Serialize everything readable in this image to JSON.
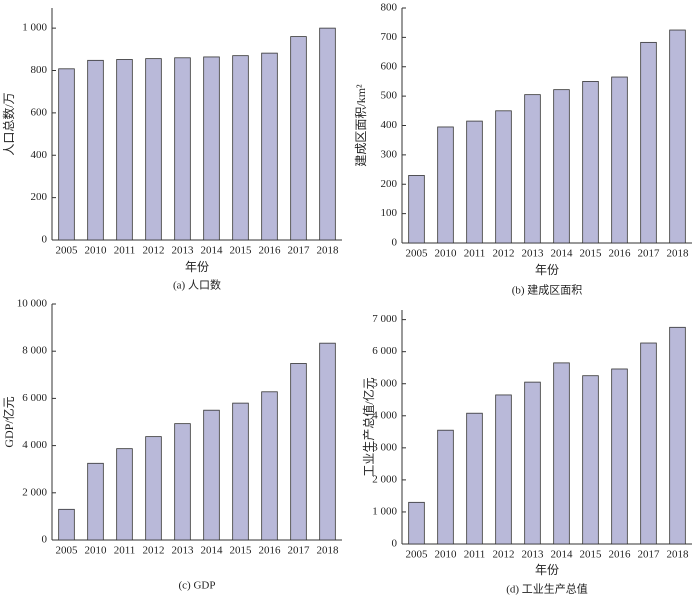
{
  "chart_data": [
    {
      "type": "bar",
      "caption": "(a) 人口数",
      "xlabel": "年份",
      "ylabel": "人口总数/万",
      "categories": [
        "2005",
        "2010",
        "2011",
        "2012",
        "2013",
        "2014",
        "2015",
        "2016",
        "2017",
        "2018"
      ],
      "values": [
        808,
        848,
        852,
        856,
        860,
        864,
        870,
        882,
        960,
        1000
      ],
      "color": "#b9b9d9",
      "ylim": [
        0,
        1095
      ],
      "yticks": [
        0,
        200,
        400,
        600,
        800,
        {
          "value": 1000,
          "label": "1 000"
        }
      ]
    },
    {
      "type": "bar",
      "caption": "(b) 建成区面积",
      "xlabel": "年份",
      "ylabel": "建成区面积/km²",
      "categories": [
        "2005",
        "2010",
        "2011",
        "2012",
        "2013",
        "2014",
        "2015",
        "2016",
        "2017",
        "2018"
      ],
      "values": [
        230,
        395,
        415,
        450,
        505,
        522,
        550,
        565,
        683,
        725
      ],
      "color": "#b9b9d9",
      "ylim": [
        0,
        800
      ],
      "yticks": [
        0,
        100,
        200,
        300,
        400,
        500,
        600,
        700,
        800
      ]
    },
    {
      "type": "bar",
      "caption": "(c) GDP",
      "ylabel": "GDP/亿元",
      "categories": [
        "2005",
        "2010",
        "2011",
        "2012",
        "2013",
        "2014",
        "2015",
        "2016",
        "2017",
        "2018"
      ],
      "values": [
        1300,
        3250,
        3870,
        4380,
        4930,
        5500,
        5800,
        6280,
        7480,
        8340
      ],
      "color": "#b9b9d9",
      "ylim": [
        0,
        10000
      ],
      "yticks": [
        0,
        {
          "value": 2000,
          "label": "2 000"
        },
        {
          "value": 4000,
          "label": "4 000"
        },
        {
          "value": 6000,
          "label": "6 000"
        },
        {
          "value": 8000,
          "label": "8 000"
        },
        {
          "value": 10000,
          "label": "10 000"
        }
      ]
    },
    {
      "type": "bar",
      "caption": "(d) 工业生产总值",
      "xlabel": "年份",
      "ylabel": "工业生产总值/亿元",
      "categories": [
        "2005",
        "2010",
        "2011",
        "2012",
        "2013",
        "2014",
        "2015",
        "2016",
        "2017",
        "2018"
      ],
      "values": [
        1300,
        3550,
        4080,
        4650,
        5050,
        5650,
        5250,
        5460,
        6270,
        6760
      ],
      "color": "#b9b9d9",
      "ylim": [
        0,
        7300
      ],
      "yticks": [
        0,
        {
          "value": 1000,
          "label": "1 000"
        },
        {
          "value": 2000,
          "label": "2 000"
        },
        {
          "value": 3000,
          "label": "3 000"
        },
        {
          "value": 4000,
          "label": "4 000"
        },
        {
          "value": 5000,
          "label": "5 000"
        },
        {
          "value": 6000,
          "label": "6 000"
        },
        {
          "value": 7000,
          "label": "7 000"
        }
      ]
    }
  ]
}
